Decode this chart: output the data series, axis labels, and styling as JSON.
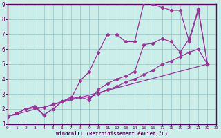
{
  "bg_color": "#cceee8",
  "line_color": "#993399",
  "grid_color": "#99cccc",
  "axis_color": "#660066",
  "xlabel": "Windchill (Refroidissement éolien,°C)",
  "xlim": [
    0,
    23
  ],
  "ylim": [
    1,
    9
  ],
  "xticks": [
    0,
    1,
    2,
    3,
    4,
    5,
    6,
    7,
    8,
    9,
    10,
    11,
    12,
    13,
    14,
    15,
    16,
    17,
    18,
    19,
    20,
    21,
    22,
    23
  ],
  "yticks": [
    1,
    2,
    3,
    4,
    5,
    6,
    7,
    8,
    9
  ],
  "series": [
    {
      "x": [
        0,
        1,
        2,
        3,
        4,
        5,
        6,
        7,
        8,
        9,
        10,
        11,
        12,
        13,
        14,
        15,
        16,
        17,
        18,
        19,
        20,
        21,
        22
      ],
      "y": [
        1.5,
        1.7,
        2.0,
        2.1,
        1.6,
        2.0,
        2.5,
        2.7,
        3.9,
        4.5,
        5.8,
        7.0,
        7.0,
        6.5,
        6.5,
        9.1,
        9.0,
        8.8,
        8.6,
        8.6,
        6.5,
        8.6,
        5.0
      ]
    },
    {
      "x": [
        0,
        1,
        2,
        3,
        4,
        5,
        6,
        7,
        8,
        9,
        10,
        11,
        12,
        13,
        14,
        15,
        16,
        17,
        18,
        19,
        20,
        21,
        22
      ],
      "y": [
        1.5,
        1.7,
        2.0,
        2.2,
        1.6,
        2.0,
        2.5,
        2.8,
        2.8,
        2.6,
        3.3,
        3.7,
        4.0,
        4.2,
        4.5,
        6.3,
        6.4,
        6.7,
        6.5,
        5.8,
        6.7,
        8.7,
        5.0
      ]
    },
    {
      "x": [
        0,
        1,
        2,
        3,
        4,
        5,
        6,
        7,
        8,
        9,
        10,
        11,
        12,
        13,
        14,
        15,
        16,
        17,
        18,
        19,
        20,
        21,
        22
      ],
      "y": [
        1.5,
        1.7,
        2.0,
        2.1,
        2.1,
        2.3,
        2.5,
        2.7,
        2.8,
        2.8,
        3.0,
        3.3,
        3.5,
        3.8,
        4.0,
        4.3,
        4.6,
        5.0,
        5.2,
        5.5,
        5.8,
        6.0,
        5.0
      ]
    },
    {
      "x": [
        0,
        22
      ],
      "y": [
        1.5,
        5.0
      ]
    }
  ],
  "marker": "D",
  "markersize": 2.2,
  "linewidth": 0.9,
  "tick_fontsize_x": 4.5,
  "tick_fontsize_y": 5.5,
  "xlabel_fontsize": 5.2
}
